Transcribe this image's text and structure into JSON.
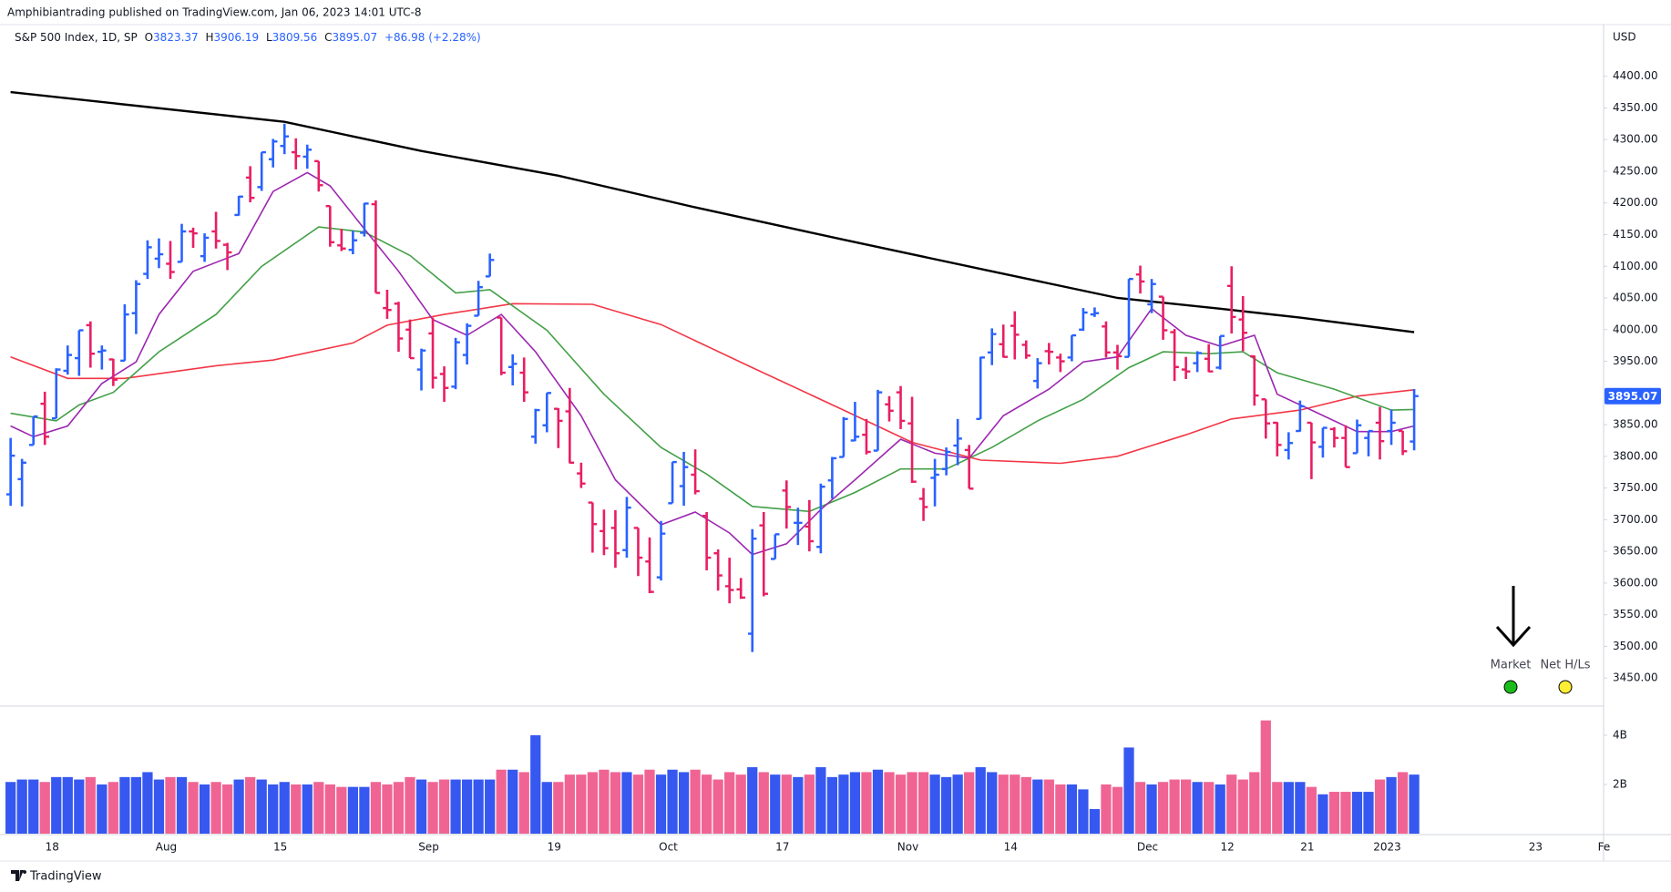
{
  "header": {
    "publisher": "Amphibiantrading published on TradingView.com, Jan 06, 2023 14:01 UTC-8",
    "symbol": "S&P 500 Index, 1D, SP",
    "ohlc_prefixes": [
      "O",
      "H",
      "L",
      "C"
    ],
    "change": "+86.98 (+2.28%)",
    "currency": "USD"
  },
  "chart_data": {
    "type": "ohlc",
    "open": [
      3740,
      3764,
      3818,
      3883,
      3860,
      3935,
      3955,
      4007,
      3965,
      3953,
      3951,
      4026,
      4088,
      4112,
      4104,
      4107,
      4155,
      4116,
      4155,
      4134,
      4181,
      4240,
      4225,
      4269,
      4290,
      4280,
      4273,
      4266,
      4195,
      4133,
      4126,
      4153,
      4198,
      4034,
      4041,
      4000,
      3937,
      3994,
      3930,
      3910,
      3960,
      4022,
      4084,
      4019,
      3941,
      3932,
      3831,
      3849,
      3875,
      3871,
      3773,
      3727,
      3682,
      3687,
      3652,
      3687,
      3634,
      3609,
      3726,
      3753,
      3771,
      3706,
      3647,
      3595,
      3590,
      3520,
      3691,
      3638,
      3746,
      3695,
      3689,
      3657,
      3762,
      3799,
      3825,
      3834,
      3809,
      3882,
      3901,
      3852,
      3733,
      3766,
      3780,
      3817,
      3810,
      3859,
      3964,
      3977,
      4006,
      3976,
      3919,
      3966,
      3956,
      3956,
      4000,
      4024,
      4005,
      3964,
      3957,
      4087,
      4040,
      4052,
      3996,
      3937,
      3947,
      3954,
      3940,
      4069,
      4016,
      3958,
      3890,
      3853,
      3810,
      3840,
      3853,
      3815,
      3843,
      3829,
      3805,
      3829,
      3853,
      3840,
      3840,
      3823.37
    ],
    "high": [
      3829,
      3796,
      3863,
      3902,
      3939,
      3975,
      3999,
      4013,
      3975,
      3954,
      4040,
      4078,
      4141,
      4144,
      4140,
      4167,
      4161,
      4152,
      4186,
      4137,
      4211,
      4258,
      4280,
      4301,
      4325,
      4302,
      4292,
      4266,
      4195,
      4159,
      4156,
      4200,
      4204,
      4063,
      4044,
      4016,
      3970,
      4019,
      3942,
      3987,
      4010,
      4077,
      4120,
      4019,
      3961,
      3956,
      3875,
      3900,
      3876,
      3908,
      3790,
      3727,
      3716,
      3715,
      3736,
      3687,
      3672,
      3698,
      3791,
      3807,
      3811,
      3712,
      3653,
      3640,
      3608,
      3685,
      3712,
      3677,
      3762,
      3719,
      3731,
      3757,
      3799,
      3862,
      3886,
      3859,
      3905,
      3895,
      3911,
      3894,
      3750,
      3796,
      3814,
      3859,
      3818,
      3957,
      4002,
      4008,
      4029,
      3983,
      3955,
      3979,
      3962,
      3991,
      4034,
      4035,
      4013,
      3976,
      4080,
      4101,
      4080,
      4052,
      4001,
      3957,
      3966,
      3977,
      3990,
      4100,
      4053,
      3959,
      3890,
      3854,
      3838,
      3888,
      3853,
      3845,
      3846,
      3849,
      3858,
      3840,
      3878,
      3874,
      3840,
      3906.19
    ],
    "low": [
      3722,
      3721,
      3818,
      3818,
      3860,
      3929,
      3927,
      3940,
      3937,
      3911,
      3951,
      3993,
      4080,
      4097,
      4080,
      4107,
      4129,
      4107,
      4128,
      4094,
      4180,
      4201,
      4219,
      4256,
      4277,
      4253,
      4254,
      4218,
      4131,
      4124,
      4119,
      4147,
      4058,
      4017,
      3965,
      3955,
      3904,
      3907,
      3886,
      3906,
      3945,
      4022,
      4084,
      3928,
      3912,
      3886,
      3820,
      3838,
      3813,
      3789,
      3750,
      3648,
      3644,
      3624,
      3640,
      3611,
      3584,
      3604,
      3726,
      3722,
      3740,
      3620,
      3588,
      3568,
      3575,
      3491,
      3579,
      3638,
      3686,
      3660,
      3650,
      3647,
      3733,
      3799,
      3824,
      3803,
      3809,
      3855,
      3843,
      3758,
      3698,
      3721,
      3770,
      3786,
      3749,
      3859,
      3944,
      3956,
      3953,
      3954,
      3907,
      3945,
      3933,
      3950,
      3998,
      4020,
      3956,
      3937,
      3957,
      4057,
      4026,
      3984,
      3919,
      3922,
      3933,
      3933,
      3937,
      3994,
      3966,
      3880,
      3828,
      3800,
      3795,
      3839,
      3764,
      3798,
      3814,
      3783,
      3805,
      3800,
      3795,
      3818,
      3802,
      3809.56
    ],
    "close": [
      3801,
      3790,
      3863,
      3831,
      3937,
      3960,
      3999,
      3962,
      3967,
      3921,
      4024,
      4072,
      4130,
      4119,
      4091,
      4155,
      4152,
      4145,
      4140,
      4122,
      4210,
      4208,
      4280,
      4297,
      4305,
      4274,
      4284,
      4228,
      4138,
      4128,
      4141,
      4199,
      4058,
      4031,
      3986,
      3955,
      3967,
      3924,
      3908,
      3980,
      4006,
      4067,
      4110,
      3932,
      3946,
      3901,
      3873,
      3900,
      3856,
      3790,
      3757,
      3693,
      3655,
      3647,
      3719,
      3640,
      3586,
      3678,
      3791,
      3783,
      3745,
      3640,
      3612,
      3589,
      3577,
      3670,
      3583,
      3677,
      3720,
      3695,
      3666,
      3752,
      3797,
      3859,
      3831,
      3807,
      3901,
      3872,
      3856,
      3760,
      3720,
      3771,
      3807,
      3828,
      3749,
      3956,
      3993,
      3957,
      3992,
      3959,
      3947,
      3965,
      3950,
      3991,
      4027,
      4026,
      3964,
      3958,
      4080,
      4076,
      4072,
      3999,
      3941,
      3934,
      3963,
      3934,
      3990,
      4020,
      3995,
      3896,
      3852,
      3818,
      3821,
      3879,
      3822,
      3845,
      3829,
      3783,
      3849,
      3840,
      3824,
      3853,
      3808,
      3895.07
    ],
    "colors": {
      "up": "#2962ff",
      "down": "#e91e63"
    },
    "ylim": [
      3410,
      4470
    ],
    "yticks": [
      {
        "value": 3450,
        "label": "3450.00"
      },
      {
        "value": 3500,
        "label": "3500.00"
      },
      {
        "value": 3550,
        "label": "3550.00"
      },
      {
        "value": 3600,
        "label": "3600.00"
      },
      {
        "value": 3650,
        "label": "3650.00"
      },
      {
        "value": 3700,
        "label": "3700.00"
      },
      {
        "value": 3750,
        "label": "3750.00"
      },
      {
        "value": 3800,
        "label": "3800.00"
      },
      {
        "value": 3850,
        "label": "3850.00"
      },
      {
        "value": 3900,
        "label": "3900.00"
      },
      {
        "value": 3950,
        "label": "3950.00"
      },
      {
        "value": 4000,
        "label": "4000.00"
      },
      {
        "value": 4050,
        "label": "4050.00"
      },
      {
        "value": 4100,
        "label": "4100.00"
      },
      {
        "value": 4150,
        "label": "4150.00"
      },
      {
        "value": 4200,
        "label": "4200.00"
      },
      {
        "value": 4250,
        "label": "4250.00"
      },
      {
        "value": 4300,
        "label": "4300.00"
      },
      {
        "value": 4350,
        "label": "4350.00"
      },
      {
        "value": 4400,
        "label": "4400.00"
      }
    ],
    "xlim": [
      -0.93,
      139.6
    ],
    "xticks": [
      {
        "value": 3,
        "label": "18"
      },
      {
        "value": 13,
        "label": "Aug"
      },
      {
        "value": 23,
        "label": "15"
      },
      {
        "value": 36,
        "label": "Sep"
      },
      {
        "value": 47,
        "label": "19"
      },
      {
        "value": 57,
        "label": "Oct"
      },
      {
        "value": 67,
        "label": "17"
      },
      {
        "value": 78,
        "label": "Nov"
      },
      {
        "value": 87,
        "label": "14"
      },
      {
        "value": 99,
        "label": "Dec"
      },
      {
        "value": 106,
        "label": "12"
      },
      {
        "value": 113,
        "label": "21"
      },
      {
        "value": 120,
        "label": "2023"
      },
      {
        "value": 133,
        "label": "23"
      },
      {
        "value": 139,
        "label": "Fe"
      }
    ],
    "moving_averages": [
      {
        "color": "#000000",
        "x": [
          0,
          24,
          36,
          48,
          60,
          73,
          86,
          97,
          106,
          113,
          123
        ],
        "values": [
          4375,
          4328,
          4282,
          4243,
          4193,
          4142,
          4092,
          4050,
          4033,
          4019,
          3996
        ]
      },
      {
        "color": "#f23645",
        "x": [
          0,
          5,
          10,
          18,
          23,
          30,
          33,
          38,
          44,
          51,
          57,
          65,
          73,
          79,
          85,
          92,
          97,
          103,
          107,
          113,
          118,
          123
        ],
        "values": [
          3957,
          3923,
          3923,
          3943,
          3952,
          3979,
          4007,
          4024,
          4041,
          4040,
          4008,
          3940,
          3873,
          3822,
          3794,
          3789,
          3800,
          3834,
          3859,
          3873,
          3895,
          3905
        ]
      },
      {
        "color": "#43a047",
        "x": [
          0,
          4,
          6,
          9,
          13,
          18,
          22,
          27,
          31,
          35,
          39,
          42,
          47,
          52,
          57,
          61,
          65,
          70,
          74,
          78,
          82,
          86,
          90,
          94,
          98,
          101,
          105,
          108,
          111,
          116,
          121,
          123
        ],
        "values": [
          3868,
          3856,
          3881,
          3901,
          3965,
          4024,
          4100,
          4162,
          4154,
          4117,
          4058,
          4063,
          3999,
          3898,
          3814,
          3772,
          3721,
          3713,
          3743,
          3780,
          3780,
          3814,
          3856,
          3890,
          3940,
          3965,
          3962,
          3965,
          3932,
          3906,
          3873,
          3874
        ]
      },
      {
        "color": "#9c27b0",
        "x": [
          0,
          2,
          5,
          8,
          11,
          13,
          16,
          20,
          23,
          26,
          28,
          31,
          34,
          37,
          40,
          43,
          46,
          50,
          53,
          57,
          60,
          63,
          65,
          68,
          71,
          74,
          78,
          81,
          84,
          87,
          91,
          94,
          97,
          100,
          103,
          106,
          109,
          111,
          114,
          118,
          121,
          123
        ],
        "values": [
          3848,
          3831,
          3848,
          3915,
          3949,
          4024,
          4092,
          4120,
          4218,
          4248,
          4227,
          4159,
          4092,
          4016,
          3991,
          4024,
          3965,
          3864,
          3763,
          3692,
          3712,
          3679,
          3645,
          3662,
          3716,
          3763,
          3827,
          3805,
          3797,
          3864,
          3906,
          3949,
          3957,
          4033,
          3991,
          3974,
          3991,
          3898,
          3873,
          3839,
          3839,
          3848
        ]
      }
    ],
    "volume": {
      "values": [
        2.1,
        2.2,
        2.2,
        2.1,
        2.3,
        2.3,
        2.2,
        2.3,
        2.0,
        2.1,
        2.3,
        2.3,
        2.5,
        2.2,
        2.3,
        2.3,
        2.1,
        2.0,
        2.1,
        2.0,
        2.2,
        2.3,
        2.2,
        2.0,
        2.1,
        2.0,
        2.0,
        2.1,
        2.0,
        1.9,
        1.9,
        1.9,
        2.1,
        2.0,
        2.1,
        2.3,
        2.2,
        2.1,
        2.2,
        2.2,
        2.2,
        2.2,
        2.2,
        2.6,
        2.6,
        2.5,
        4.0,
        2.1,
        2.1,
        2.4,
        2.4,
        2.5,
        2.6,
        2.5,
        2.5,
        2.4,
        2.6,
        2.4,
        2.6,
        2.5,
        2.6,
        2.4,
        2.2,
        2.5,
        2.4,
        2.7,
        2.5,
        2.4,
        2.4,
        2.3,
        2.4,
        2.7,
        2.3,
        2.4,
        2.5,
        2.5,
        2.6,
        2.5,
        2.4,
        2.5,
        2.5,
        2.4,
        2.3,
        2.4,
        2.5,
        2.7,
        2.5,
        2.4,
        2.4,
        2.3,
        2.2,
        2.2,
        2.0,
        2.0,
        1.8,
        1.0,
        2.0,
        1.9,
        3.5,
        2.1,
        2.0,
        2.1,
        2.2,
        2.2,
        2.1,
        2.1,
        2.0,
        2.4,
        2.2,
        2.5,
        4.6,
        2.1,
        2.1,
        2.1,
        1.9,
        1.6,
        1.7,
        1.7,
        1.7,
        1.7,
        2.2,
        2.3,
        2.5,
        2.4
      ],
      "colors": {
        "up": "#3658f0",
        "down": "#f06493"
      },
      "ylim": [
        0,
        5.07
      ],
      "yticks": [
        {
          "value": 2,
          "label": "2B"
        },
        {
          "value": 4,
          "label": "4B"
        }
      ]
    }
  },
  "indicators": [
    {
      "label": "Market",
      "color": "#1cbc1c"
    },
    {
      "label": "Net H/Ls",
      "color": "#ffee33"
    }
  ],
  "footer": "TradingView"
}
